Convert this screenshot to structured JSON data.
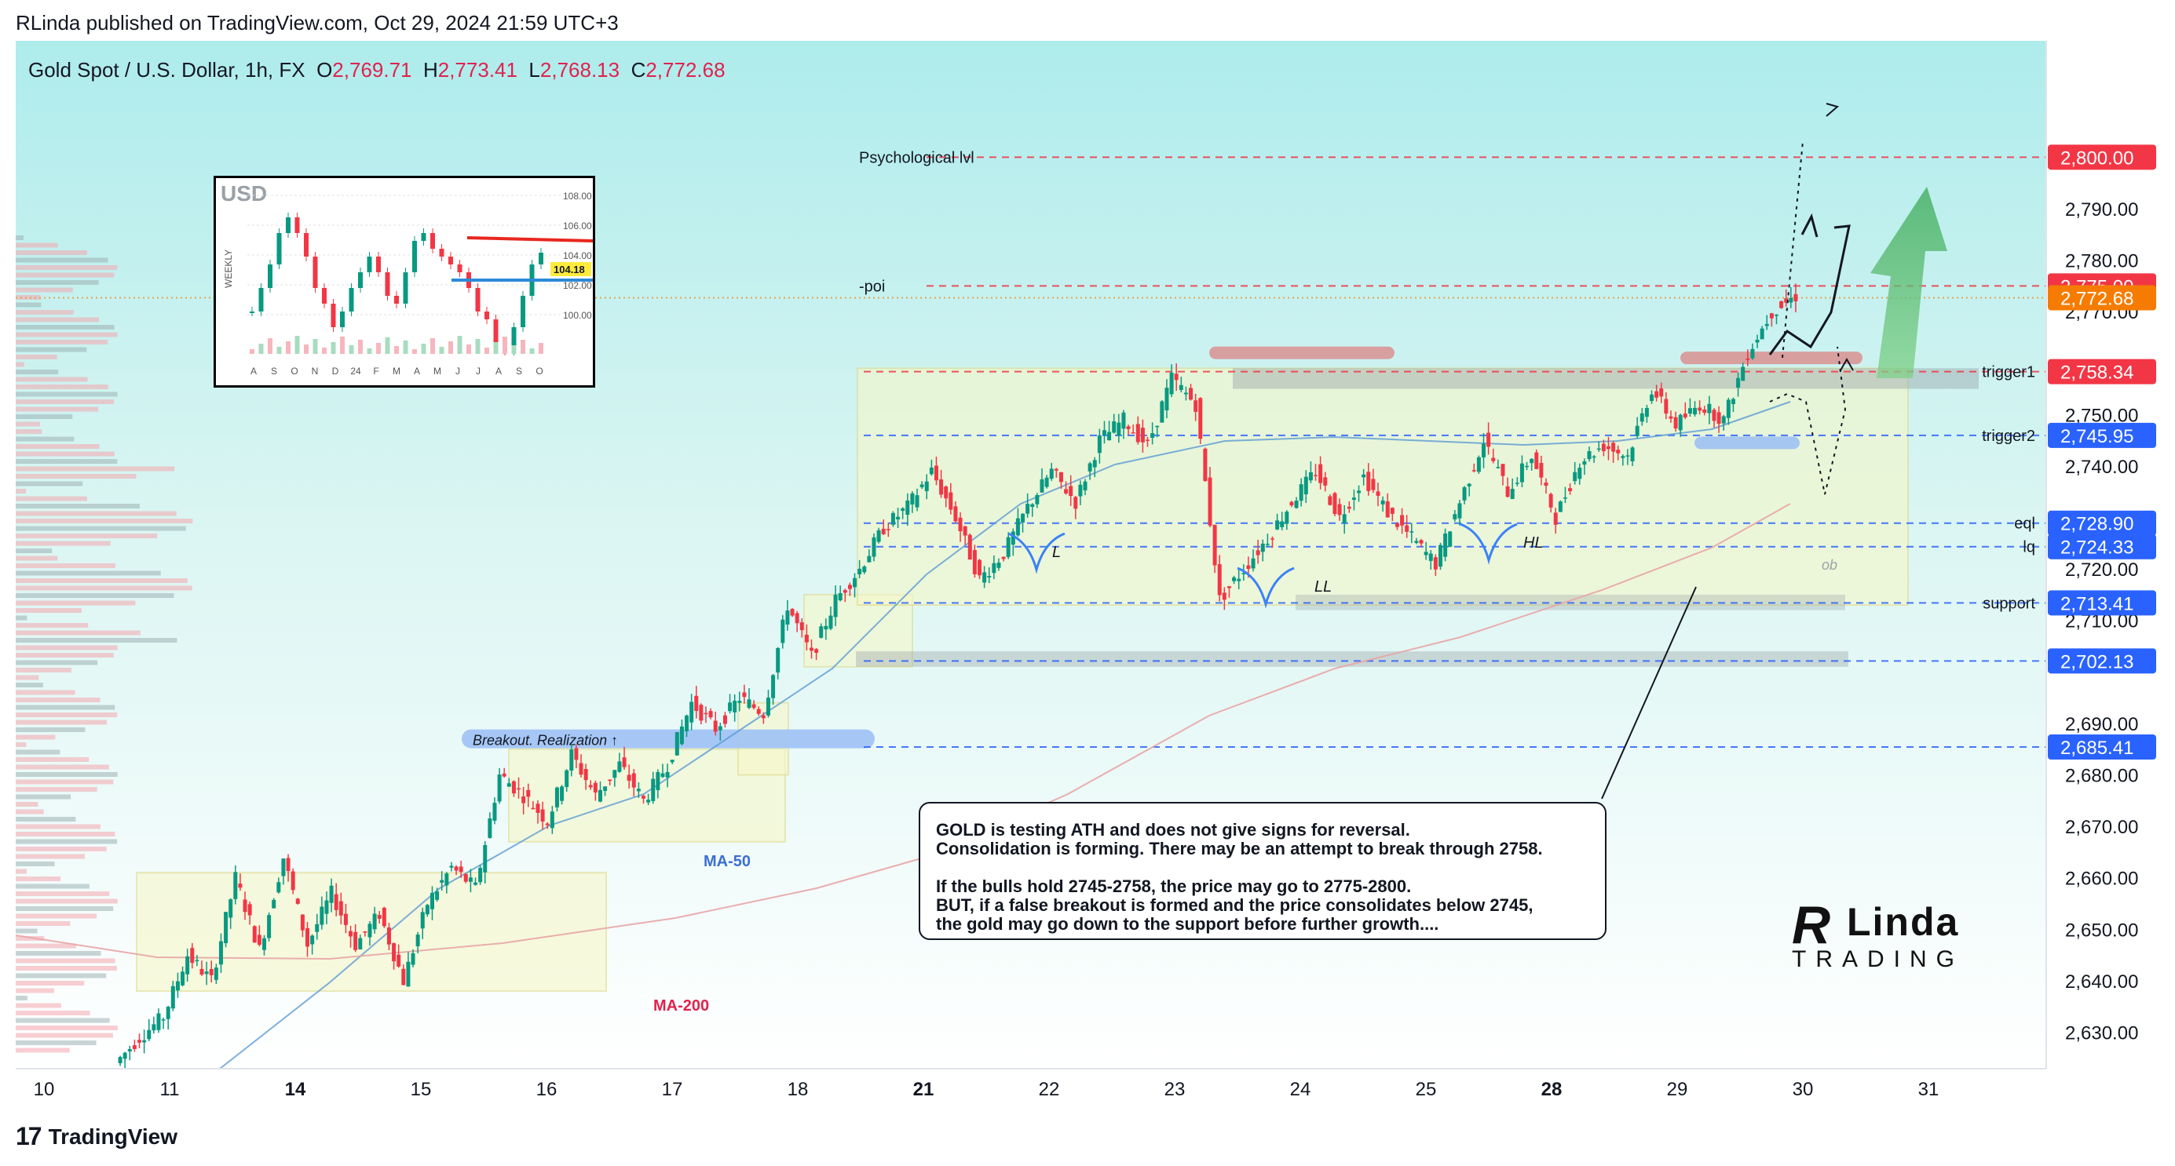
{
  "header": {
    "published": "RLinda published on TradingView.com, Oct 29, 2024 21:59 UTC+3"
  },
  "symbol": {
    "name": "Gold Spot / U.S. Dollar, 1h, FX",
    "o_label": "O",
    "o": "2,769.71",
    "h_label": "H",
    "h": "2,773.41",
    "l_label": "L",
    "l": "2,768.13",
    "c_label": "C",
    "c": "2,772.68"
  },
  "footer": {
    "logo_text": "TradingView",
    "logo_mark": "17"
  },
  "annotation": {
    "lines": [
      "GOLD is testing ATH and does not give signs for reversal.",
      "Consolidation is forming. There may be an attempt to break through 2758.",
      "",
      "If the bulls hold 2745-2758, the price may go to 2775-2800.",
      "BUT, if a false breakout is formed and the price consolidates below 2745,",
      "the gold may go down to the support before further growth...."
    ]
  },
  "brand": {
    "top": "Linda",
    "bottom": "TRADING",
    "mark": "R"
  },
  "inset": {
    "title": "USD",
    "side_label": "WEEKLY",
    "yticks": [
      "108.00",
      "106.00",
      "104.00",
      "102.00",
      "100.00"
    ],
    "price_badge": "104.18",
    "xticks": [
      "A",
      "S",
      "O",
      "N",
      "D",
      "24",
      "F",
      "M",
      "A",
      "M",
      "J",
      "J",
      "A",
      "S",
      "O"
    ]
  },
  "colors": {
    "up": "#089981",
    "down": "#f23645",
    "bg_top": "#b2ebf2",
    "bg_bottom": "#ffffff",
    "level_red": "#f23645",
    "level_blue": "#2962ff",
    "last_price": "#f57c00",
    "ma50": "#5b9bd5",
    "ma200": "#e8a5a5"
  },
  "chart_data": {
    "type": "candlestick",
    "y_range": [
      2622,
      2806
    ],
    "y_ticks": [
      {
        "value": 2630,
        "label": "2,630.00"
      },
      {
        "value": 2640,
        "label": "2,640.00"
      },
      {
        "value": 2650,
        "label": "2,650.00"
      },
      {
        "value": 2660,
        "label": "2,660.00"
      },
      {
        "value": 2670,
        "label": "2,670.00"
      },
      {
        "value": 2680,
        "label": "2,680.00"
      },
      {
        "value": 2690,
        "label": "2,690.00"
      },
      {
        "value": 2710,
        "label": "2,710.00"
      },
      {
        "value": 2720,
        "label": "2,720.00"
      },
      {
        "value": 2740,
        "label": "2,740.00"
      },
      {
        "value": 2750,
        "label": "2,750.00"
      },
      {
        "value": 2770,
        "label": "2,770.00"
      },
      {
        "value": 2780,
        "label": "2,780.00"
      },
      {
        "value": 2790,
        "label": "2,790.00"
      }
    ],
    "x_ticks": [
      {
        "label": "10",
        "bold": false
      },
      {
        "label": "11",
        "bold": false
      },
      {
        "label": "14",
        "bold": true
      },
      {
        "label": "15",
        "bold": false
      },
      {
        "label": "16",
        "bold": false
      },
      {
        "label": "17",
        "bold": false
      },
      {
        "label": "18",
        "bold": false
      },
      {
        "label": "21",
        "bold": true
      },
      {
        "label": "22",
        "bold": false
      },
      {
        "label": "23",
        "bold": false
      },
      {
        "label": "24",
        "bold": false
      },
      {
        "label": "25",
        "bold": false
      },
      {
        "label": "28",
        "bold": true
      },
      {
        "label": "29",
        "bold": false
      },
      {
        "label": "30",
        "bold": false
      },
      {
        "label": "31",
        "bold": false
      }
    ],
    "levels": [
      {
        "value": 2800.0,
        "label": "2,800.00",
        "color": "red",
        "note": "Psychological lvl"
      },
      {
        "value": 2775.0,
        "label": "2,775.00",
        "color": "red",
        "note": "-poi"
      },
      {
        "value": 2772.68,
        "label": "2,772.68",
        "color": "orange",
        "note": ""
      },
      {
        "value": 2758.34,
        "label": "2,758.34",
        "color": "red",
        "note": "trigger1"
      },
      {
        "value": 2745.95,
        "label": "2,745.95",
        "color": "blue",
        "note": "trigger2"
      },
      {
        "value": 2728.9,
        "label": "2,728.90",
        "color": "blue",
        "note": "eql"
      },
      {
        "value": 2724.33,
        "label": "2,724.33",
        "color": "blue",
        "note": "lq"
      },
      {
        "value": 2713.41,
        "label": "2,713.41",
        "color": "blue",
        "note": "support"
      },
      {
        "value": 2702.13,
        "label": "2,702.13",
        "color": "blue",
        "note": ""
      },
      {
        "value": 2685.41,
        "label": "2,685.41",
        "color": "blue",
        "note": ""
      }
    ],
    "annotations": {
      "breakout": "Breakout. Realization ↑",
      "ma50": "MA-50",
      "ma200": "MA-200",
      "swing_L": "L",
      "swing_LL": "LL",
      "swing_HL": "HL",
      "ob": "ob"
    },
    "price_path": [
      [
        2624,
        2629
      ],
      [
        2629,
        2633
      ],
      [
        2633,
        2645
      ],
      [
        2645,
        2640
      ],
      [
        2640,
        2660
      ],
      [
        2660,
        2646
      ],
      [
        2646,
        2664
      ],
      [
        2664,
        2647
      ],
      [
        2647,
        2657
      ],
      [
        2657,
        2647
      ],
      [
        2647,
        2653
      ],
      [
        2653,
        2640
      ],
      [
        2640,
        2655
      ],
      [
        2655,
        2662
      ],
      [
        2662,
        2658
      ],
      [
        2658,
        2680
      ],
      [
        2680,
        2676
      ],
      [
        2676,
        2671
      ],
      [
        2671,
        2684
      ],
      [
        2684,
        2676
      ],
      [
        2676,
        2682
      ],
      [
        2682,
        2675
      ],
      [
        2675,
        2682
      ],
      [
        2682,
        2694
      ],
      [
        2694,
        2689
      ],
      [
        2689,
        2695
      ],
      [
        2695,
        2692
      ],
      [
        2692,
        2713
      ],
      [
        2713,
        2703
      ],
      [
        2703,
        2714
      ],
      [
        2714,
        2720
      ],
      [
        2720,
        2728
      ],
      [
        2728,
        2732
      ],
      [
        2732,
        2739
      ],
      [
        2739,
        2730
      ],
      [
        2730,
        2718
      ],
      [
        2718,
        2723
      ],
      [
        2723,
        2732
      ],
      [
        2732,
        2739
      ],
      [
        2739,
        2733
      ],
      [
        2733,
        2745
      ],
      [
        2745,
        2749
      ],
      [
        2749,
        2744
      ],
      [
        2744,
        2757
      ],
      [
        2757,
        2752
      ],
      [
        2752,
        2714
      ],
      [
        2714,
        2720
      ],
      [
        2720,
        2726
      ],
      [
        2726,
        2733
      ],
      [
        2733,
        2739
      ],
      [
        2739,
        2730
      ],
      [
        2730,
        2738
      ],
      [
        2738,
        2731
      ],
      [
        2731,
        2726
      ],
      [
        2726,
        2721
      ],
      [
        2721,
        2733
      ],
      [
        2733,
        2745
      ],
      [
        2745,
        2735
      ],
      [
        2735,
        2742
      ],
      [
        2742,
        2730
      ],
      [
        2730,
        2741
      ],
      [
        2741,
        2744
      ],
      [
        2744,
        2742
      ],
      [
        2742,
        2755
      ],
      [
        2755,
        2748
      ],
      [
        2748,
        2752
      ],
      [
        2752,
        2749
      ],
      [
        2749,
        2762
      ],
      [
        2762,
        2770
      ],
      [
        2770,
        2773
      ]
    ]
  }
}
